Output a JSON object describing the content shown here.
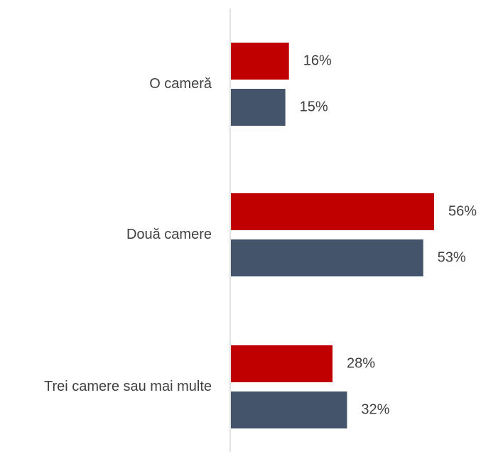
{
  "chart_data": {
    "type": "bar",
    "orientation": "horizontal",
    "categories": [
      "O cameră",
      "Două camere",
      "Trei camere sau mai multe"
    ],
    "series": [
      {
        "color": "#c00000",
        "values": [
          16,
          56,
          28
        ]
      },
      {
        "color": "#44546a",
        "values": [
          15,
          53,
          32
        ]
      }
    ],
    "value_suffix": "%",
    "xlim": [
      0,
      60
    ],
    "grid": false,
    "legend": "none"
  }
}
